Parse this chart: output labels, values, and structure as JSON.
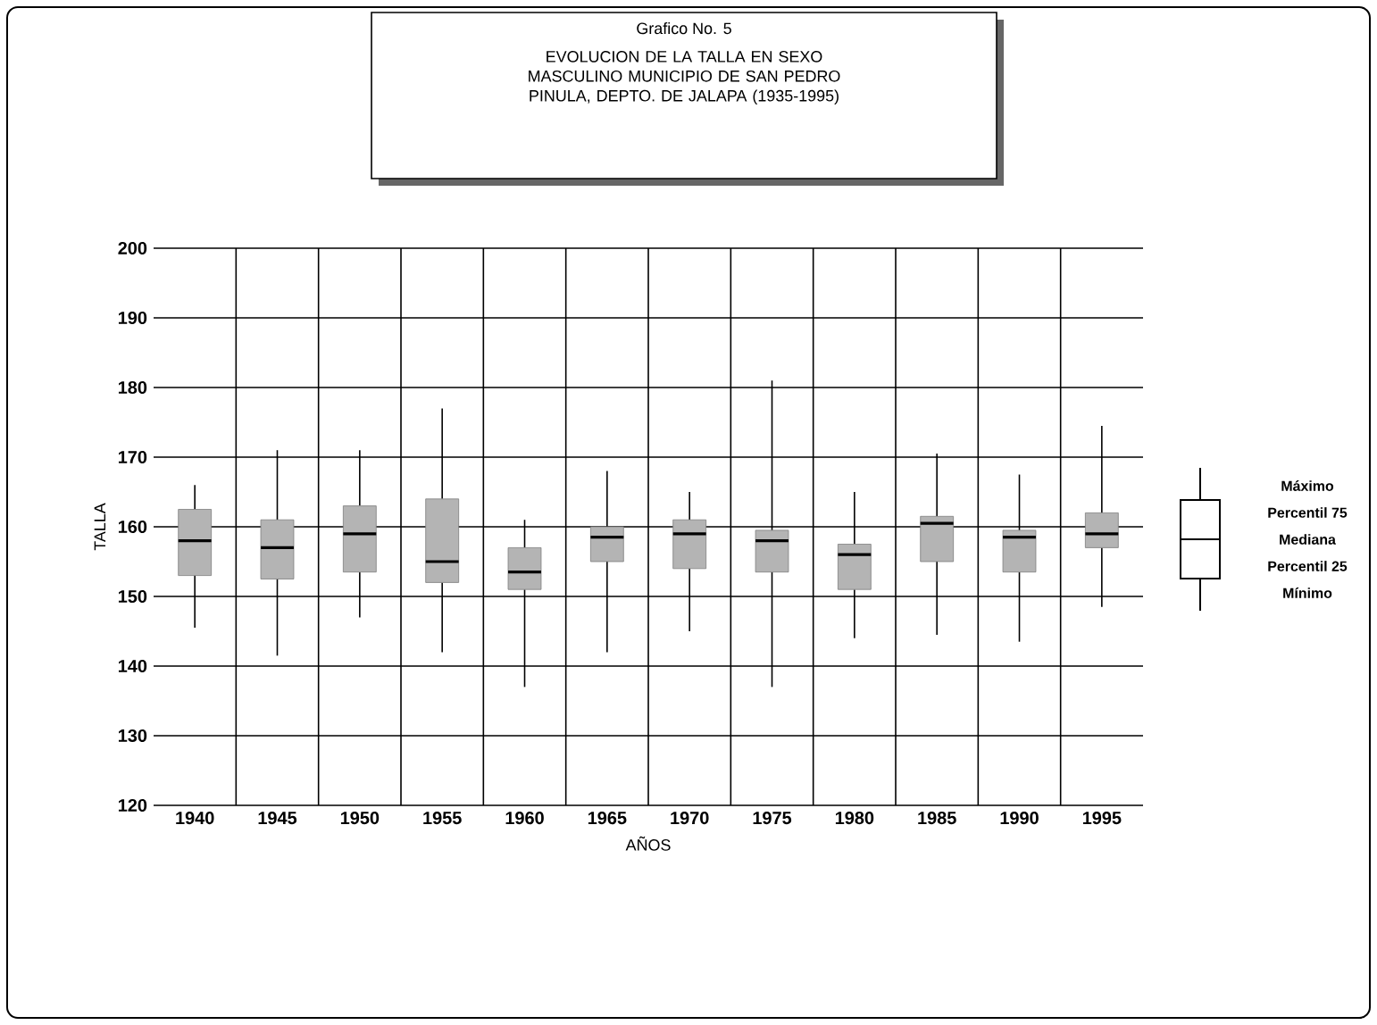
{
  "chart_data": {
    "type": "box",
    "title": "Grafico No. 5",
    "subtitle": "EVOLUCION DE LA TALLA EN SEXO MASCULINO MUNICIPIO DE SAN PEDRO PINULA, DEPTO. DE JALAPA (1935-1995)",
    "xlabel": "AÑOS",
    "ylabel": "TALLA",
    "categories": [
      "1940",
      "1945",
      "1950",
      "1955",
      "1960",
      "1965",
      "1970",
      "1975",
      "1980",
      "1985",
      "1990",
      "1995"
    ],
    "boxes": [
      {
        "low": 145.5,
        "q1": 153,
        "median": 158,
        "q3": 162.5,
        "high": 166
      },
      {
        "low": 141.5,
        "q1": 152.5,
        "median": 157,
        "q3": 161,
        "high": 171
      },
      {
        "low": 147,
        "q1": 153.5,
        "median": 159,
        "q3": 163,
        "high": 171
      },
      {
        "low": 142,
        "q1": 152,
        "median": 155,
        "q3": 164,
        "high": 177
      },
      {
        "low": 137,
        "q1": 151,
        "median": 153.5,
        "q3": 157,
        "high": 161
      },
      {
        "low": 142,
        "q1": 155,
        "median": 158.5,
        "q3": 160,
        "high": 168
      },
      {
        "low": 145,
        "q1": 154,
        "median": 159,
        "q3": 161,
        "high": 165
      },
      {
        "low": 137,
        "q1": 153.5,
        "median": 158,
        "q3": 159.5,
        "high": 181
      },
      {
        "low": 144,
        "q1": 151,
        "median": 156,
        "q3": 157.5,
        "high": 165
      },
      {
        "low": 144.5,
        "q1": 155,
        "median": 160.5,
        "q3": 161.5,
        "high": 170.5
      },
      {
        "low": 143.5,
        "q1": 153.5,
        "median": 158.5,
        "q3": 159.5,
        "high": 167.5
      },
      {
        "low": 148.5,
        "q1": 157,
        "median": 159,
        "q3": 162,
        "high": 174.5
      }
    ],
    "color": "#b4b4b4",
    "ylim": [
      120,
      200
    ],
    "yticks": [
      120,
      130,
      140,
      150,
      160,
      170,
      180,
      190,
      200
    ],
    "grid": true,
    "annotations": [
      "Máximo",
      "Percentil 75",
      "Mediana",
      "Percentil 25",
      "Mínimo"
    ]
  }
}
